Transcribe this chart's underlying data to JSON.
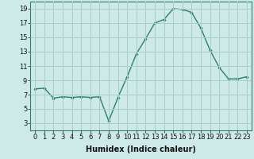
{
  "x": [
    0,
    1,
    2,
    3,
    4,
    5,
    6,
    7,
    8,
    9,
    10,
    11,
    12,
    13,
    14,
    15,
    16,
    17,
    18,
    19,
    20,
    21,
    22,
    23
  ],
  "y": [
    7.8,
    7.9,
    6.5,
    6.7,
    6.6,
    6.7,
    6.6,
    6.7,
    3.3,
    6.6,
    9.5,
    12.7,
    14.8,
    17.0,
    17.5,
    19.0,
    18.9,
    18.5,
    16.3,
    13.2,
    10.8,
    9.2,
    9.2,
    9.5
  ],
  "line_color": "#2e7d6e",
  "marker": "D",
  "marker_size": 1.8,
  "background_color": "#ceeae8",
  "grid_color": "#a8ceca",
  "xlabel": "Humidex (Indice chaleur)",
  "xlim": [
    -0.5,
    23.5
  ],
  "ylim": [
    2,
    20
  ],
  "yticks": [
    3,
    5,
    7,
    9,
    11,
    13,
    15,
    17,
    19
  ],
  "xticks": [
    0,
    1,
    2,
    3,
    4,
    5,
    6,
    7,
    8,
    9,
    10,
    11,
    12,
    13,
    14,
    15,
    16,
    17,
    18,
    19,
    20,
    21,
    22,
    23
  ],
  "xlabel_fontsize": 7,
  "tick_fontsize": 6,
  "line_width": 1.0
}
